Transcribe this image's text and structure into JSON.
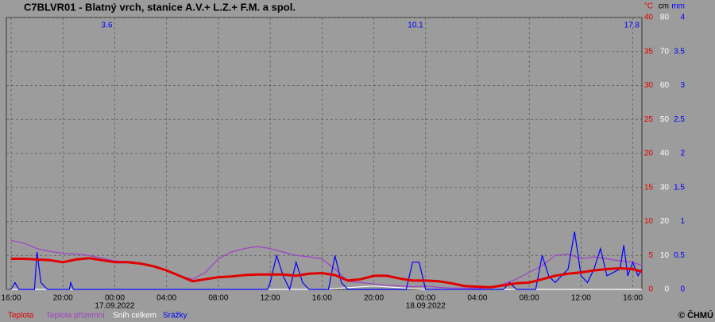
{
  "chart_data": {
    "type": "line",
    "title": "C7BLVR01 - Blatný vrch, stanice A.V.+ L.Z.+ F.M. a spol.",
    "xlim": [
      -0.37,
      48.7
    ],
    "xticks": [
      {
        "value": 0,
        "label": "16:00"
      },
      {
        "value": 4,
        "label": "20:00"
      },
      {
        "value": 8,
        "label": "00:00"
      },
      {
        "value": 12,
        "label": "04:00"
      },
      {
        "value": 16,
        "label": "08:00"
      },
      {
        "value": 20,
        "label": "12:00"
      },
      {
        "value": 24,
        "label": "16:00"
      },
      {
        "value": 28,
        "label": "20:00"
      },
      {
        "value": 32,
        "label": "00:00"
      },
      {
        "value": 36,
        "label": "04:00"
      },
      {
        "value": 40,
        "label": "08:00"
      },
      {
        "value": 44,
        "label": "12:00"
      },
      {
        "value": 48,
        "label": "16:00"
      }
    ],
    "date_labels": [
      {
        "value": 8,
        "label": "17.09.2022"
      },
      {
        "value": 32,
        "label": "18.09.2022"
      }
    ],
    "day_totals": {
      "x": [
        8,
        32,
        48.7
      ],
      "values": [
        3.6,
        10.1,
        17.8
      ],
      "color": "#0000ff"
    },
    "y_unit": "°C",
    "ylim": [
      0,
      40
    ],
    "yticks": [
      0,
      5,
      10,
      15,
      20,
      25,
      30,
      35,
      40
    ],
    "y2_unit": "cm",
    "y2lim": [
      0,
      80
    ],
    "y2ticks": [
      0,
      10,
      20,
      30,
      40,
      50,
      60,
      70,
      80
    ],
    "y3_unit": "mm",
    "y3lim": [
      0,
      4
    ],
    "y3ticks": [
      0,
      0.5,
      1,
      1.5,
      2,
      2.5,
      3,
      3.5,
      4
    ],
    "grid": true,
    "series": [
      {
        "name": "Teplota",
        "color": "#e00000",
        "axis": "y",
        "x": [
          0,
          1,
          2,
          3,
          4,
          5,
          6,
          7,
          8,
          9,
          10,
          11,
          12,
          13,
          14,
          15,
          16,
          17,
          18,
          19,
          20,
          21,
          22,
          23,
          24,
          25,
          26,
          27,
          28,
          29,
          30,
          31,
          32,
          33,
          34,
          35,
          36,
          37,
          38,
          39,
          40,
          41,
          42,
          43,
          44,
          45,
          46,
          47,
          48,
          48.7
        ],
        "values": [
          4.5,
          4.5,
          4.4,
          4.3,
          4.0,
          4.4,
          4.6,
          4.3,
          4.0,
          4.0,
          3.8,
          3.4,
          2.8,
          2.0,
          1.2,
          1.5,
          1.8,
          1.9,
          2.1,
          2.2,
          2.2,
          2.2,
          2.0,
          2.3,
          2.4,
          2.1,
          1.3,
          1.5,
          2.0,
          2.0,
          1.6,
          1.3,
          1.3,
          1.2,
          0.9,
          0.5,
          0.4,
          0.3,
          0.6,
          0.9,
          1.0,
          1.5,
          2.0,
          2.3,
          2.5,
          2.8,
          3.0,
          3.1,
          3.0,
          2.6
        ]
      },
      {
        "name": "Teplota přízemní",
        "color": "#a040c8",
        "axis": "y",
        "x": [
          0,
          1,
          2,
          3,
          4,
          5,
          6,
          7,
          8,
          9,
          10,
          11,
          12,
          13,
          14,
          15,
          16,
          17,
          18,
          19,
          20,
          21,
          22,
          23,
          24,
          25,
          26,
          27,
          28,
          29,
          30,
          31,
          32,
          33,
          34,
          35,
          36,
          37,
          38,
          39,
          40,
          41,
          42,
          43,
          44,
          45,
          46,
          47,
          48,
          48.7
        ],
        "values": [
          7.2,
          6.8,
          6.0,
          5.6,
          5.3,
          5.2,
          5.0,
          4.6,
          4.2,
          4.0,
          3.8,
          3.4,
          2.8,
          2.0,
          1.5,
          2.5,
          4.5,
          5.5,
          6.0,
          6.3,
          6.0,
          5.5,
          5.0,
          4.8,
          4.5,
          3.0,
          1.2,
          1.0,
          0.8,
          0.6,
          0.5,
          0.4,
          0.5,
          0.3,
          0.2,
          0.2,
          0.1,
          0.3,
          0.8,
          1.5,
          2.5,
          3.5,
          5.0,
          5.2,
          4.5,
          4.8,
          4.5,
          4.2,
          4.0,
          3.5
        ]
      },
      {
        "name": "Sníh celkem",
        "color": "#ffffff",
        "axis": "y2",
        "x": [
          0,
          12,
          24,
          28,
          32,
          36,
          48.7
        ],
        "values": [
          0,
          0,
          0,
          1,
          0,
          0,
          0
        ]
      },
      {
        "name": "Srážky",
        "color": "#0000ff",
        "axis": "y3",
        "x": [
          0,
          0.3,
          0.6,
          1.8,
          2.0,
          2.3,
          2.8,
          4.5,
          4.6,
          4.8,
          19.8,
          20,
          20.5,
          21,
          21.5,
          22,
          22.5,
          23,
          24.5,
          25,
          25.5,
          26,
          30.5,
          31,
          31.5,
          32,
          38,
          38.5,
          39,
          40.5,
          41,
          41.5,
          42,
          43,
          43.5,
          44,
          44.5,
          45,
          45.5,
          46,
          47,
          47.3,
          47.6,
          48,
          48.4,
          48.7
        ],
        "values": [
          0,
          0.1,
          0,
          0,
          0.55,
          0.1,
          0,
          0,
          0.1,
          0,
          0,
          0.1,
          0.5,
          0.2,
          0,
          0.4,
          0.1,
          0,
          0,
          0.5,
          0.1,
          0,
          0,
          0.4,
          0.4,
          0,
          0,
          0.1,
          0,
          0,
          0.5,
          0.2,
          0.1,
          0.3,
          0.85,
          0.2,
          0.1,
          0.3,
          0.6,
          0.2,
          0.3,
          0.65,
          0.2,
          0.4,
          0.2,
          0.3
        ]
      }
    ],
    "copyright": "© ČHMÚ"
  }
}
